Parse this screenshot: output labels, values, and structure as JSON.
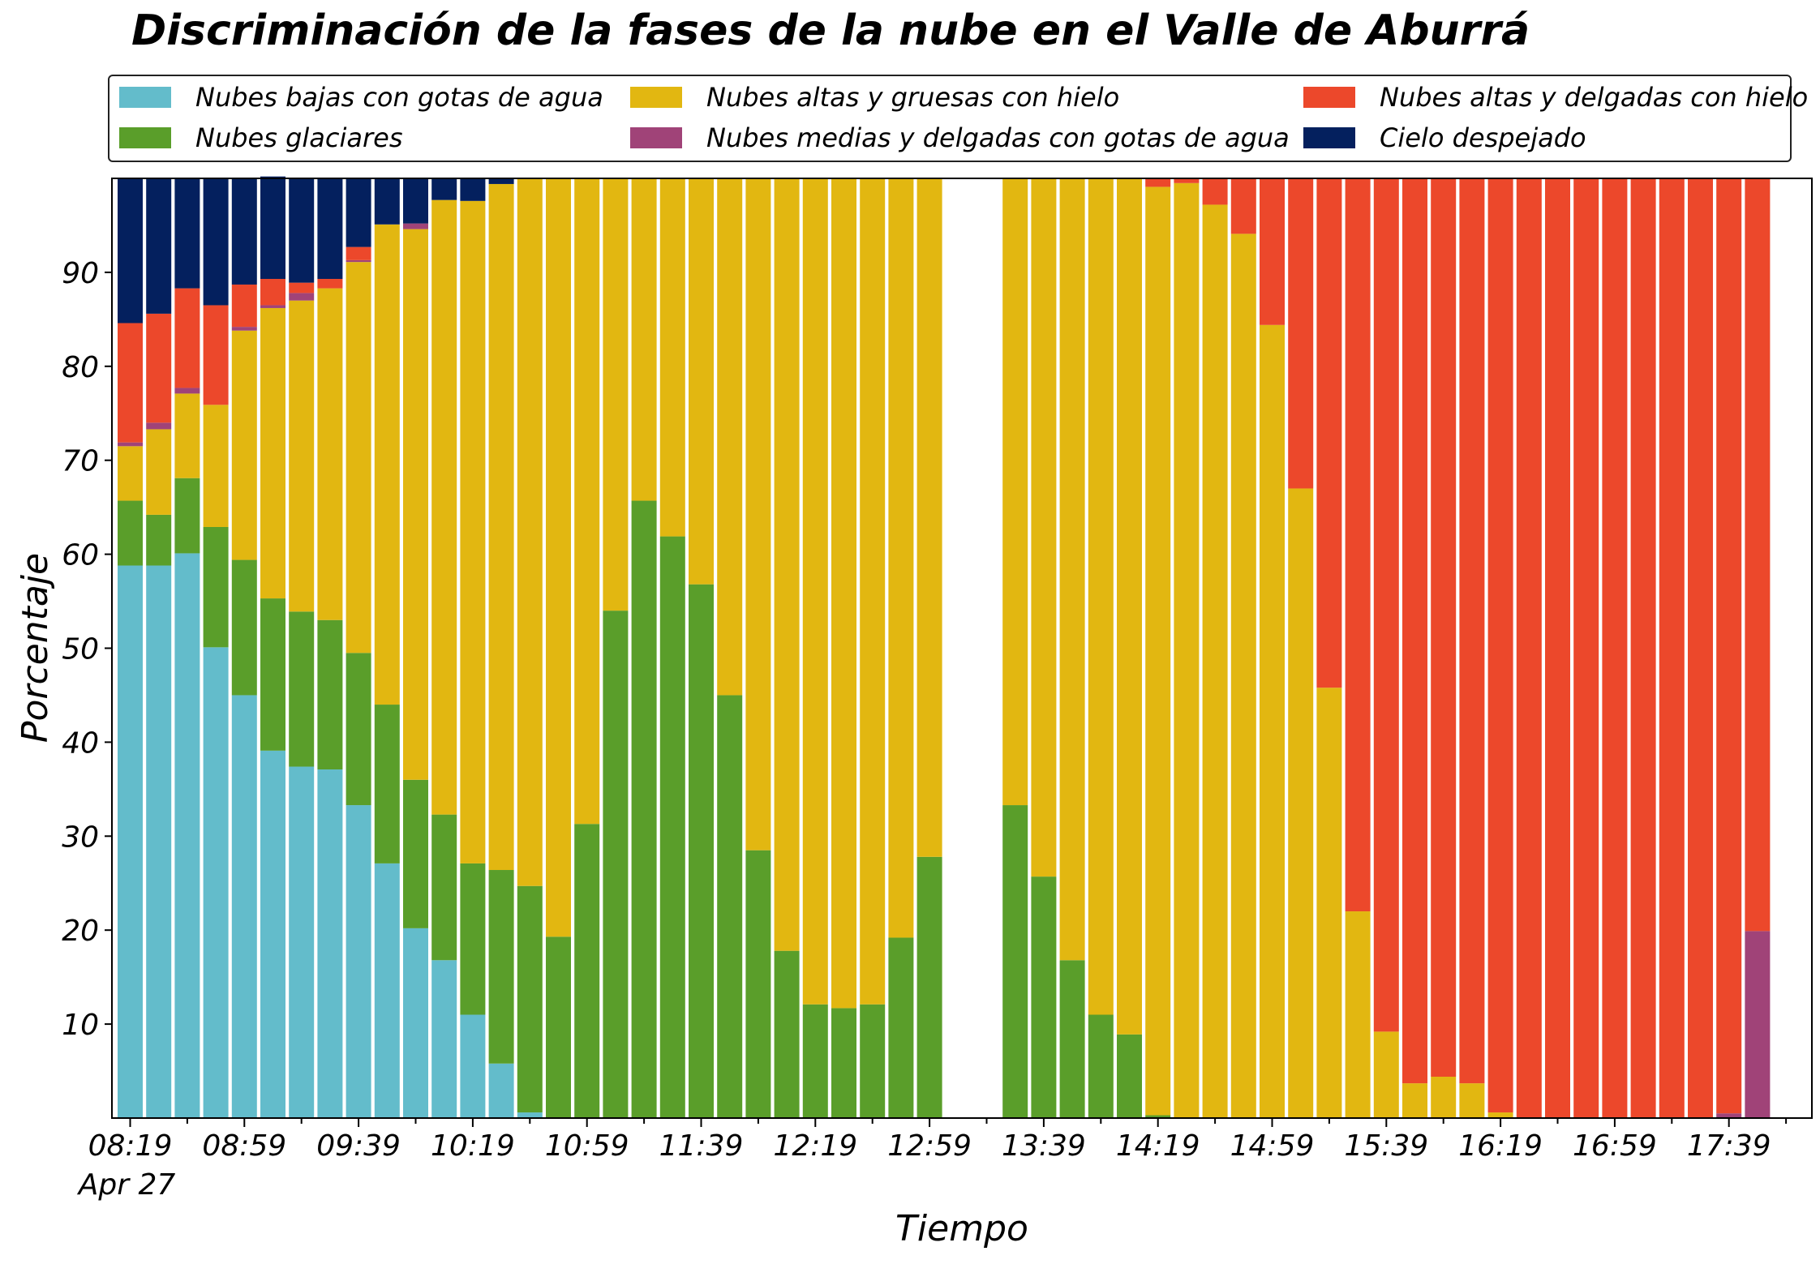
{
  "colors": {
    "Nubes bajas con gotas de agua": "#63bccb",
    "Nubes glaciares": "#5a9e2a",
    "Nubes altas y gruesas con hielo": "#e2b711",
    "Nubes medias y delgadas con gotas de agua": "#a04378",
    "Nubes altas y delgadas con hielo": "#ec482b",
    "Cielo despejado": "#04205e"
  },
  "chart_data": {
    "type": "bar",
    "stacked": true,
    "title": "Discriminación de la fases de la nube en el Valle de Aburrá",
    "xlabel": "Tiempo",
    "ylabel": "Porcentaje",
    "ylim": [
      0,
      100
    ],
    "y_ticks": [
      10,
      20,
      30,
      40,
      50,
      60,
      70,
      80,
      90
    ],
    "x_tick_labels": [
      "08:19",
      "08:59",
      "09:39",
      "10:19",
      "10:59",
      "11:39",
      "12:19",
      "12:59",
      "13:39",
      "14:19",
      "14:59",
      "15:39",
      "16:19",
      "16:59",
      "17:39"
    ],
    "x_tick_sublabel": "Apr 27",
    "grid": false,
    "legend_position": "top",
    "categories": [
      "08:19",
      "08:29",
      "08:39",
      "08:49",
      "08:59",
      "09:09",
      "09:19",
      "09:29",
      "09:39",
      "09:49",
      "09:59",
      "10:09",
      "10:19",
      "10:29",
      "10:39",
      "10:49",
      "10:59",
      "11:09",
      "11:19",
      "11:29",
      "11:39",
      "11:49",
      "11:59",
      "12:09",
      "12:19",
      "12:29",
      "12:39",
      "12:49",
      "12:59",
      "13:09",
      "13:19",
      "13:29",
      "13:39",
      "13:49",
      "13:59",
      "14:09",
      "14:19",
      "14:29",
      "14:39",
      "14:49",
      "14:59",
      "15:09",
      "15:19",
      "15:29",
      "15:39",
      "15:49",
      "15:59",
      "16:09",
      "16:19",
      "16:29",
      "16:39",
      "16:49",
      "16:59",
      "17:09",
      "17:19",
      "17:29",
      "17:39",
      "17:49"
    ],
    "series": [
      {
        "name": "Nubes bajas con gotas de agua",
        "values": [
          58.8,
          58.8,
          60.1,
          50.1,
          45.0,
          39.1,
          37.4,
          37.1,
          33.3,
          27.1,
          20.2,
          16.8,
          11.0,
          5.8,
          0.6,
          0,
          0,
          0,
          0,
          0,
          0,
          0,
          0,
          0,
          0,
          0,
          0,
          0,
          0,
          null,
          null,
          0,
          0,
          0,
          0,
          0,
          0,
          0,
          0,
          0,
          0,
          0,
          0,
          0,
          0,
          0,
          0,
          0,
          0,
          0,
          0,
          0,
          0,
          0,
          0,
          0,
          0,
          0
        ]
      },
      {
        "name": "Nubes glaciares",
        "values": [
          6.9,
          5.4,
          8.0,
          12.8,
          14.4,
          16.2,
          16.5,
          15.9,
          16.2,
          16.9,
          15.8,
          15.5,
          16.1,
          20.6,
          24.1,
          19.3,
          31.3,
          54.0,
          65.7,
          61.9,
          56.8,
          45.0,
          28.5,
          17.8,
          12.1,
          11.7,
          12.1,
          19.2,
          27.8,
          null,
          null,
          33.3,
          25.7,
          16.8,
          11.0,
          8.9,
          0.3,
          0,
          0,
          0,
          0,
          0,
          0,
          0,
          0,
          0,
          0,
          0,
          0,
          0,
          0,
          0,
          0,
          0,
          0,
          0,
          0,
          0
        ]
      },
      {
        "name": "Nubes altas y gruesas con hielo",
        "values": [
          5.8,
          9.1,
          9.0,
          13.0,
          24.4,
          30.9,
          33.1,
          35.3,
          41.6,
          51.1,
          58.6,
          65.4,
          70.5,
          73.0,
          75.3,
          80.7,
          68.7,
          46.0,
          34.3,
          38.1,
          43.2,
          55.0,
          71.5,
          82.2,
          87.9,
          88.3,
          87.9,
          80.8,
          72.2,
          null,
          null,
          66.7,
          74.3,
          83.2,
          89.0,
          91.1,
          98.8,
          99.5,
          97.2,
          94.1,
          84.4,
          67.0,
          45.8,
          22.0,
          9.2,
          3.7,
          4.4,
          3.7,
          0.6,
          0,
          0,
          0,
          0,
          0,
          0,
          0,
          0,
          0
        ]
      },
      {
        "name": "Nubes medias y delgadas con gotas de agua",
        "values": [
          0.4,
          0.7,
          0.6,
          0,
          0.4,
          0.3,
          0.8,
          0,
          0.2,
          0,
          0.6,
          0,
          0,
          0,
          0,
          0,
          0,
          0,
          0,
          0,
          0,
          0,
          0,
          0,
          0,
          0,
          0,
          0,
          0,
          null,
          null,
          0,
          0,
          0,
          0,
          0,
          0,
          0,
          0,
          0,
          0,
          0,
          0,
          0,
          0,
          0,
          0,
          0,
          0,
          0,
          0,
          0,
          0,
          0,
          0,
          0,
          0.5,
          19.9
        ]
      },
      {
        "name": "Nubes altas y delgadas con hielo",
        "values": [
          12.7,
          11.6,
          10.6,
          10.6,
          4.5,
          2.8,
          1.1,
          1.0,
          1.4,
          0,
          0,
          0,
          0,
          0,
          0,
          0,
          0,
          0,
          0,
          0,
          0,
          0,
          0,
          0,
          0,
          0,
          0,
          0,
          0,
          null,
          null,
          0,
          0,
          0,
          0,
          0,
          0.9,
          0.5,
          2.8,
          5.9,
          15.6,
          33.0,
          54.2,
          78.0,
          90.8,
          96.3,
          95.6,
          96.3,
          99.4,
          100,
          100,
          100,
          100,
          100,
          100,
          100,
          99.5,
          80.1
        ]
      },
      {
        "name": "Cielo despejado",
        "values": [
          15.4,
          14.4,
          11.7,
          13.5,
          11.3,
          10.9,
          11.1,
          10.7,
          7.3,
          4.9,
          4.8,
          2.3,
          2.4,
          0.6,
          0,
          0,
          0,
          0,
          0,
          0,
          0,
          0,
          0,
          0,
          0,
          0,
          0,
          0,
          0,
          null,
          null,
          0,
          0,
          0,
          0,
          0,
          0,
          0,
          0,
          0,
          0,
          0,
          0,
          0,
          0,
          0,
          0,
          0,
          0,
          0,
          0,
          0,
          0,
          0,
          0,
          0,
          0,
          0
        ]
      }
    ]
  }
}
